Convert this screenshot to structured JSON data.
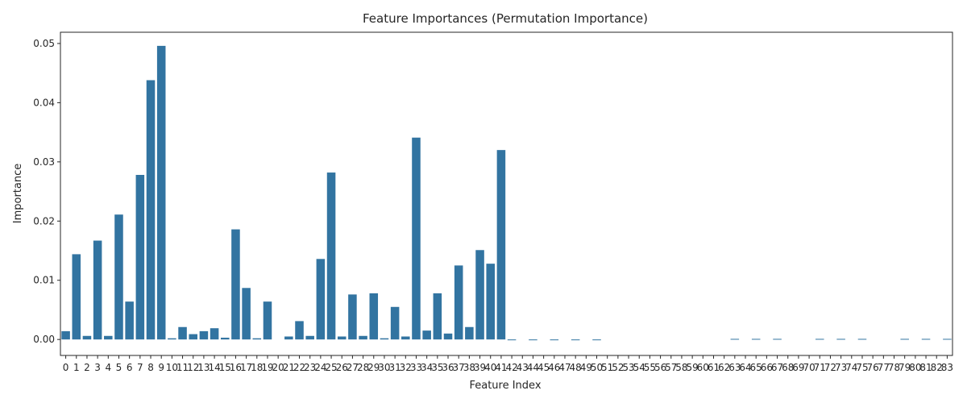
{
  "colors": {
    "bar": "#3274a1",
    "axis": "#262626",
    "background": "#ffffff"
  },
  "chart_data": {
    "type": "bar",
    "title": "Feature Importances (Permutation Importance)",
    "xlabel": "Feature Index",
    "ylabel": "Importance",
    "ylim": [
      -0.0027,
      0.0519
    ],
    "yticks": [
      0.0,
      0.01,
      0.02,
      0.03,
      0.04,
      0.05
    ],
    "ytick_labels": [
      "0.00",
      "0.01",
      "0.02",
      "0.03",
      "0.04",
      "0.05"
    ],
    "grid": false,
    "categories": [
      "0",
      "1",
      "2",
      "3",
      "4",
      "5",
      "6",
      "7",
      "8",
      "9",
      "10",
      "11",
      "12",
      "13",
      "14",
      "15",
      "16",
      "17",
      "18",
      "19",
      "20",
      "21",
      "22",
      "23",
      "24",
      "25",
      "26",
      "27",
      "28",
      "29",
      "30",
      "31",
      "32",
      "33",
      "34",
      "35",
      "36",
      "37",
      "38",
      "39",
      "40",
      "41",
      "42",
      "43",
      "44",
      "45",
      "46",
      "47",
      "48",
      "49",
      "50",
      "51",
      "52",
      "53",
      "54",
      "55",
      "56",
      "57",
      "58",
      "59",
      "60",
      "61",
      "62",
      "63",
      "64",
      "65",
      "66",
      "67",
      "68",
      "69",
      "70",
      "71",
      "72",
      "73",
      "74",
      "75",
      "76",
      "77",
      "78",
      "79",
      "80",
      "81",
      "82",
      "83"
    ],
    "values": [
      0.0014,
      0.0144,
      0.0006,
      0.0167,
      0.0006,
      0.0211,
      0.0064,
      0.0278,
      0.0438,
      0.0496,
      0.0002,
      0.0021,
      0.0009,
      0.0014,
      0.0019,
      0.0003,
      0.0186,
      0.0087,
      0.0002,
      0.0064,
      0.0,
      0.0005,
      0.0031,
      0.0006,
      0.0136,
      0.0282,
      0.0005,
      0.0076,
      0.0006,
      0.0078,
      0.0002,
      0.0055,
      0.0005,
      0.0341,
      0.0015,
      0.0078,
      0.001,
      0.0125,
      0.0021,
      0.0151,
      0.0128,
      0.032,
      -0.0001,
      0.0,
      -0.0001,
      0.0,
      -0.0001,
      0.0,
      -0.0001,
      0.0,
      -0.0001,
      0.0,
      0.0,
      0.0,
      0.0,
      0.0,
      0.0,
      0.0,
      0.0,
      0.0,
      0.0,
      0.0,
      0.0,
      0.0001,
      0.0,
      0.0001,
      0.0,
      0.0001,
      0.0,
      0.0,
      0.0,
      0.0001,
      0.0,
      0.0001,
      0.0,
      0.0001,
      0.0,
      0.0,
      0.0,
      0.0001,
      0.0,
      0.0001,
      0.0,
      0.0001
    ]
  }
}
